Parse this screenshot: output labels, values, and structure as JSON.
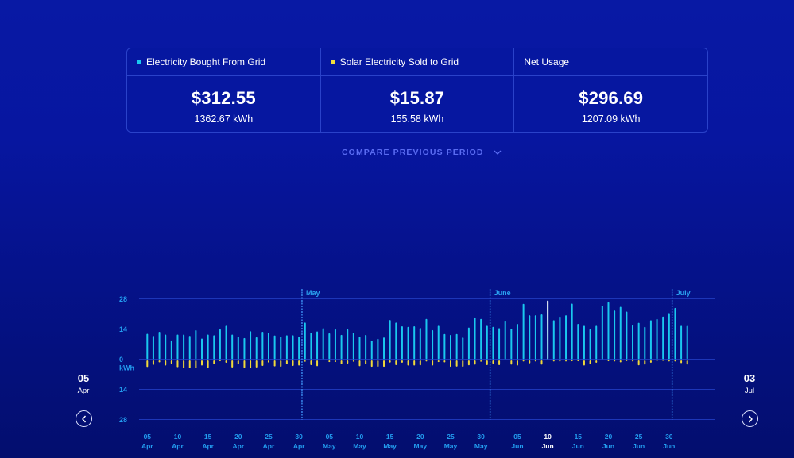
{
  "summary": {
    "cards": [
      {
        "label": "Electricity Bought From Grid",
        "dot_color": "#19c8f0",
        "cost": "$312.55",
        "energy": "1362.67 kWh"
      },
      {
        "label": "Solar Electricity Sold to Grid",
        "dot_color": "#f2df3c",
        "cost": "$15.87",
        "energy": "155.58 kWh"
      },
      {
        "label": "Net Usage",
        "cost": "$296.69",
        "energy": "1207.09 kWh"
      }
    ]
  },
  "compare": {
    "label": "COMPARE PREVIOUS PERIOD",
    "icon": "chevron-down-icon"
  },
  "range": {
    "start": {
      "day": "05",
      "month": "Apr"
    },
    "end": {
      "day": "03",
      "month": "Jul"
    },
    "prev_icon": "chevron-left-icon",
    "next_icon": "chevron-right-icon"
  },
  "colors": {
    "bought": "#1ac8ef",
    "sold": "#f0d93a",
    "grid": "#1d36b8",
    "tick_text": "#239df0",
    "compare_text": "#5a6cf2",
    "selected": "#ffffff"
  },
  "chart_data": {
    "type": "bar",
    "title": "",
    "xlabel": "",
    "ylabel": "kWh",
    "ylim": [
      -28,
      28
    ],
    "grid": true,
    "yticks": [
      {
        "value": 28,
        "label": "28"
      },
      {
        "value": 14,
        "label": "14"
      },
      {
        "value": 0,
        "label": "0"
      },
      {
        "value": -14,
        "label": "14"
      },
      {
        "value": -28,
        "label": "28"
      }
    ],
    "unit_label": "kWh",
    "categories": [
      "05 Apr",
      "06 Apr",
      "07 Apr",
      "08 Apr",
      "09 Apr",
      "10 Apr",
      "11 Apr",
      "12 Apr",
      "13 Apr",
      "14 Apr",
      "15 Apr",
      "16 Apr",
      "17 Apr",
      "18 Apr",
      "19 Apr",
      "20 Apr",
      "21 Apr",
      "22 Apr",
      "23 Apr",
      "24 Apr",
      "25 Apr",
      "26 Apr",
      "27 Apr",
      "28 Apr",
      "29 Apr",
      "30 Apr",
      "01 May",
      "02 May",
      "03 May",
      "04 May",
      "05 May",
      "06 May",
      "07 May",
      "08 May",
      "09 May",
      "10 May",
      "11 May",
      "12 May",
      "13 May",
      "14 May",
      "15 May",
      "16 May",
      "17 May",
      "18 May",
      "19 May",
      "20 May",
      "21 May",
      "22 May",
      "23 May",
      "24 May",
      "25 May",
      "26 May",
      "27 May",
      "28 May",
      "29 May",
      "30 May",
      "31 May",
      "01 Jun",
      "02 Jun",
      "03 Jun",
      "04 Jun",
      "05 Jun",
      "06 Jun",
      "07 Jun",
      "08 Jun",
      "09 Jun",
      "10 Jun",
      "11 Jun",
      "12 Jun",
      "13 Jun",
      "14 Jun",
      "15 Jun",
      "16 Jun",
      "17 Jun",
      "18 Jun",
      "19 Jun",
      "20 Jun",
      "21 Jun",
      "22 Jun",
      "23 Jun",
      "24 Jun",
      "25 Jun",
      "26 Jun",
      "27 Jun",
      "28 Jun",
      "29 Jun",
      "30 Jun",
      "01 Jul",
      "02 Jul",
      "03 Jul"
    ],
    "series": [
      {
        "name": "Electricity Bought From Grid",
        "color": "#1ac8ef",
        "direction": "up",
        "values": [
          11.8,
          10.8,
          12.7,
          11.4,
          8.7,
          11.4,
          11.4,
          10.8,
          13.5,
          9.6,
          11.4,
          11.1,
          13.9,
          15.5,
          11.4,
          10.5,
          9.8,
          13.0,
          10.2,
          12.7,
          12.3,
          11.0,
          10.5,
          11.1,
          11.1,
          10.5,
          17.0,
          12.3,
          12.9,
          14.4,
          12.0,
          13.9,
          11.3,
          13.9,
          12.3,
          10.4,
          11.3,
          8.6,
          9.5,
          10.1,
          18.2,
          17.0,
          15.3,
          15.0,
          15.3,
          14.5,
          18.7,
          13.5,
          15.5,
          11.7,
          11.3,
          11.7,
          10.1,
          14.7,
          19.4,
          18.7,
          15.5,
          15.0,
          14.4,
          17.7,
          14.1,
          16.4,
          25.7,
          20.4,
          20.4,
          20.8,
          27.2,
          18.1,
          19.8,
          20.4,
          25.8,
          16.4,
          15.5,
          13.9,
          15.5,
          24.8,
          26.5,
          22.6,
          24.3,
          22.1,
          15.8,
          16.9,
          15.0,
          18.1,
          18.7,
          19.8,
          21.4,
          23.8,
          15.5,
          15.5
        ]
      },
      {
        "name": "Solar Electricity Sold to Grid",
        "color": "#f0d93a",
        "direction": "down",
        "values": [
          3.1,
          2.1,
          0.9,
          2.4,
          1.6,
          3.2,
          3.7,
          3.7,
          3.7,
          2.4,
          3.5,
          1.8,
          0.4,
          1.1,
          3.3,
          1.9,
          3.5,
          3.7,
          3.3,
          2.6,
          1.0,
          2.8,
          3.0,
          1.8,
          2.6,
          2.4,
          0.6,
          2.2,
          2.7,
          0.0,
          0.8,
          0.8,
          1.7,
          1.5,
          0.6,
          2.7,
          1.8,
          3.0,
          3.0,
          3.0,
          1.0,
          2.2,
          1.1,
          2.4,
          2.4,
          2.3,
          0.5,
          2.4,
          0.8,
          0.9,
          3.0,
          2.9,
          3.0,
          2.3,
          2.0,
          0.6,
          2.2,
          1.5,
          2.2,
          0.0,
          2.0,
          2.4,
          0.5,
          1.4,
          0.5,
          2.0,
          0.0,
          0.5,
          0.5,
          0.5,
          0.4,
          0.4,
          2.4,
          1.7,
          1.1,
          0.0,
          0.4,
          0.5,
          0.9,
          0.3,
          0.5,
          2.3,
          2.0,
          1.1,
          0.3,
          0.2,
          0.5,
          0.5,
          1.3,
          2.0
        ]
      }
    ],
    "xticks": [
      {
        "at": "05 Apr",
        "day": "05",
        "month": "Apr"
      },
      {
        "at": "10 Apr",
        "day": "10",
        "month": "Apr"
      },
      {
        "at": "15 Apr",
        "day": "15",
        "month": "Apr"
      },
      {
        "at": "20 Apr",
        "day": "20",
        "month": "Apr"
      },
      {
        "at": "25 Apr",
        "day": "25",
        "month": "Apr"
      },
      {
        "at": "30 Apr",
        "day": "30",
        "month": "Apr"
      },
      {
        "at": "05 May",
        "day": "05",
        "month": "May"
      },
      {
        "at": "10 May",
        "day": "10",
        "month": "May"
      },
      {
        "at": "15 May",
        "day": "15",
        "month": "May"
      },
      {
        "at": "20 May",
        "day": "20",
        "month": "May"
      },
      {
        "at": "25 May",
        "day": "25",
        "month": "May"
      },
      {
        "at": "30 May",
        "day": "30",
        "month": "May"
      },
      {
        "at": "05 Jun",
        "day": "05",
        "month": "Jun"
      },
      {
        "at": "10 Jun",
        "day": "10",
        "month": "Jun"
      },
      {
        "at": "15 Jun",
        "day": "15",
        "month": "Jun"
      },
      {
        "at": "20 Jun",
        "day": "20",
        "month": "Jun"
      },
      {
        "at": "25 Jun",
        "day": "25",
        "month": "Jun"
      },
      {
        "at": "30 Jun",
        "day": "30",
        "month": "Jun"
      }
    ],
    "month_markers": [
      {
        "at": "01 May",
        "label": "May"
      },
      {
        "at": "01 Jun",
        "label": "June"
      },
      {
        "at": "01 Jul",
        "label": "July"
      }
    ],
    "selected": "10 Jun",
    "legend": "none"
  }
}
